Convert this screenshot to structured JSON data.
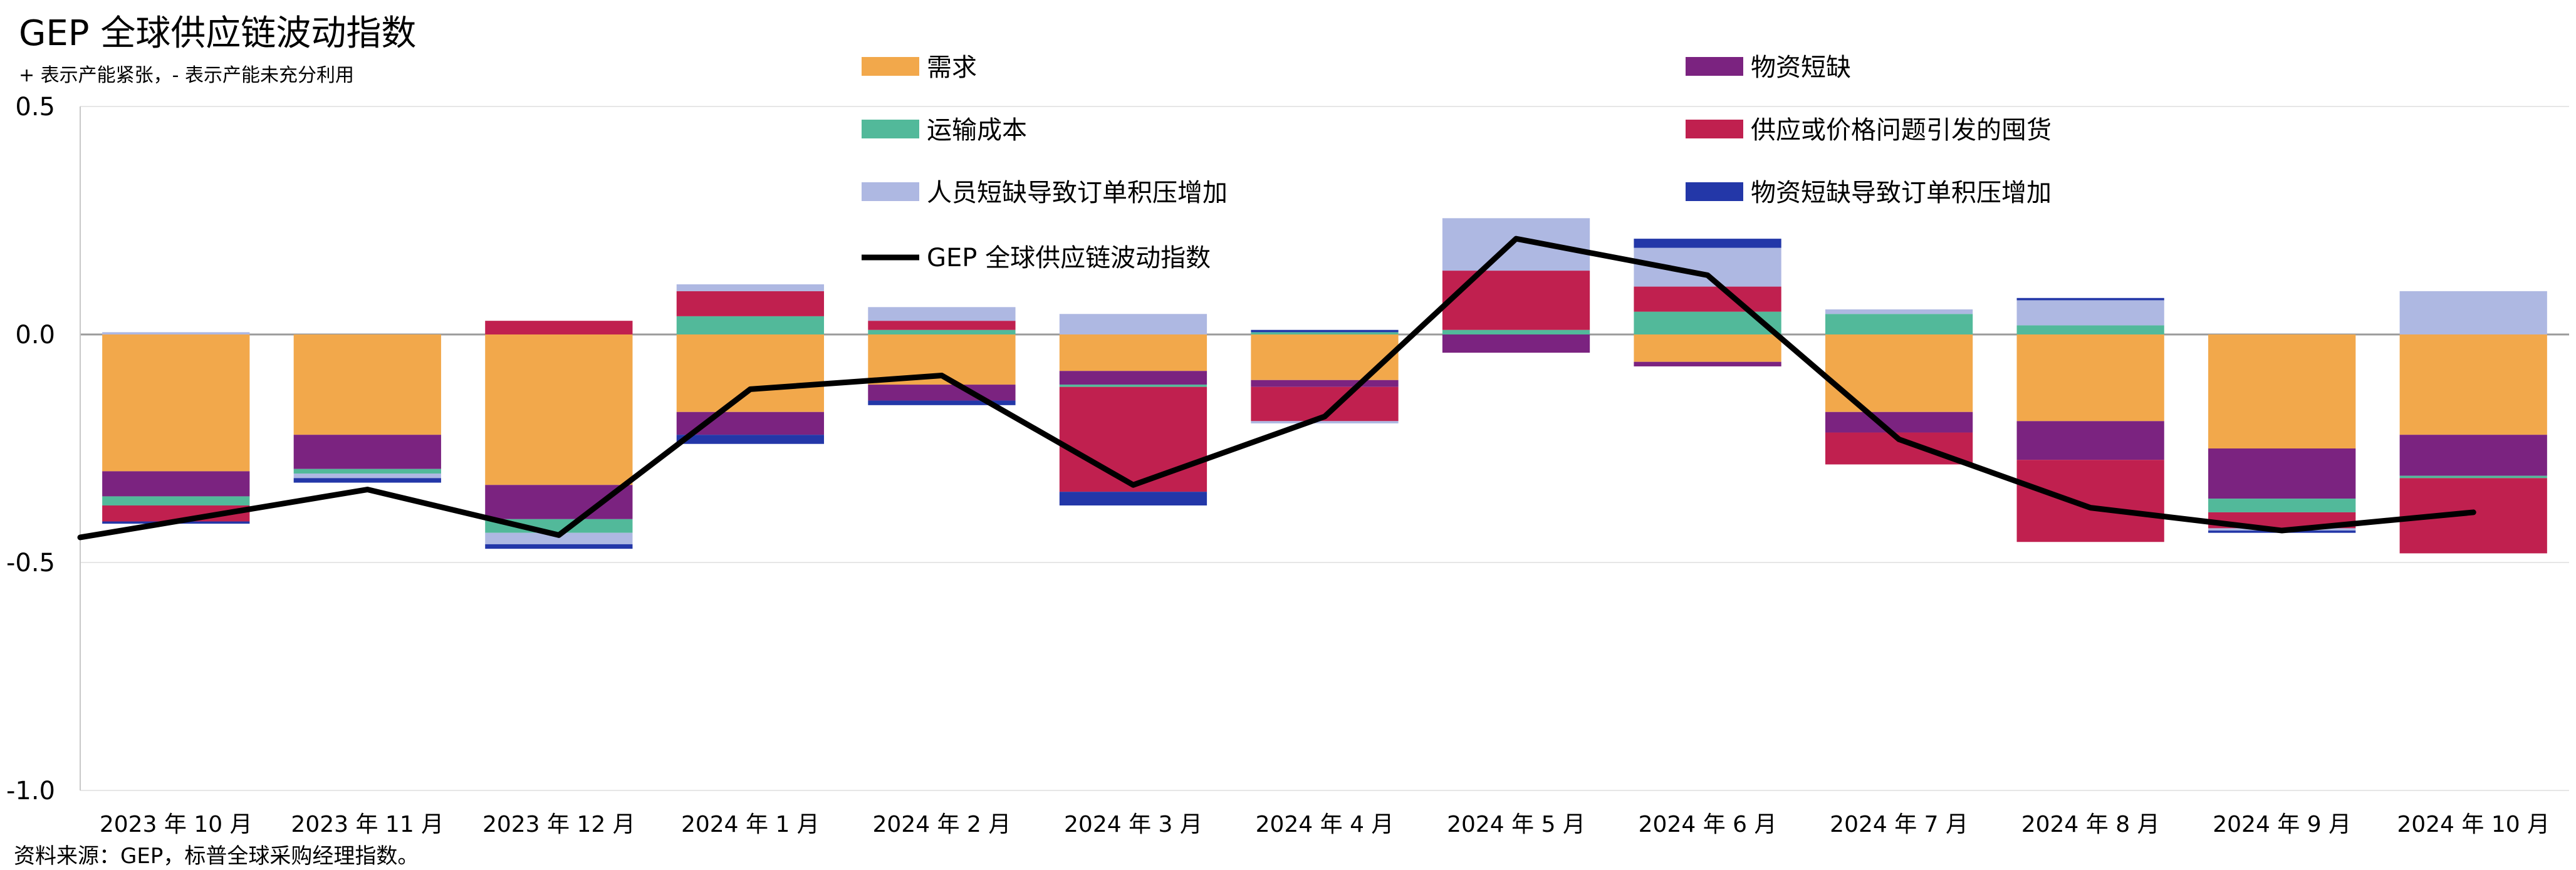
{
  "chart_data": {
    "type": "bar",
    "title": "GEP 全球供应链波动指数",
    "subtitle": "+ 表示产能紧张，- 表示产能未充分利用",
    "source": "资料来源：GEP，标普全球采购经理指数。",
    "categories": [
      "2023 年 10 月",
      "2023 年 11 月",
      "2023 年 12 月",
      "2024 年 1 月",
      "2024 年 2 月",
      "2024 年 3 月",
      "2024 年 4 月",
      "2024 年 5 月",
      "2024 年 6 月",
      "2024 年 7 月",
      "2024 年 8 月",
      "2024 年 9 月",
      "2024 年 10 月"
    ],
    "ylim": [
      -1.0,
      0.5
    ],
    "yticks": [
      0.5,
      0.0,
      -0.5,
      -1.0
    ],
    "ytick_labels": [
      "0.5",
      "0.0",
      "-0.5",
      "-1.0"
    ],
    "grid": true,
    "legend_position": "top",
    "series": [
      {
        "name": "需求",
        "color": "#F2A84B",
        "values": [
          -0.3,
          -0.22,
          -0.33,
          -0.17,
          -0.11,
          -0.08,
          -0.1,
          0.0,
          -0.06,
          -0.17,
          -0.19,
          -0.25,
          -0.22
        ]
      },
      {
        "name": "物资短缺",
        "color": "#7B2380",
        "values": [
          -0.055,
          -0.075,
          -0.075,
          -0.05,
          -0.035,
          -0.03,
          -0.015,
          -0.04,
          -0.01,
          -0.045,
          -0.085,
          -0.11,
          -0.09
        ]
      },
      {
        "name": "运输成本",
        "color": "#52B99A",
        "values": [
          -0.02,
          -0.01,
          -0.03,
          0.04,
          0.01,
          -0.005,
          0.005,
          0.01,
          0.05,
          0.045,
          0.02,
          -0.03,
          -0.005
        ]
      },
      {
        "name": "供应或价格问题引发的囤货",
        "color": "#C0204F",
        "values": [
          -0.035,
          0.0,
          0.03,
          0.055,
          0.02,
          -0.23,
          -0.075,
          0.13,
          0.055,
          -0.07,
          -0.18,
          -0.035,
          -0.165
        ]
      },
      {
        "name": "人员短缺导致订单积压增加",
        "color": "#AEB8E2",
        "values": [
          0.005,
          -0.01,
          -0.025,
          0.015,
          0.03,
          0.045,
          -0.005,
          0.115,
          0.085,
          0.01,
          0.055,
          -0.005,
          0.095
        ]
      },
      {
        "name": "物资短缺导致订单积压增加",
        "color": "#2337A8",
        "values": [
          -0.005,
          -0.01,
          -0.01,
          -0.02,
          -0.01,
          -0.03,
          0.005,
          0.0,
          0.02,
          0.0,
          0.005,
          -0.005,
          0.0
        ]
      }
    ],
    "line": {
      "name": "GEP 全球供应链波动指数",
      "color": "#000000",
      "values": [
        -0.41,
        -0.34,
        -0.44,
        -0.12,
        -0.09,
        -0.33,
        -0.18,
        0.21,
        0.13,
        -0.23,
        -0.38,
        -0.43,
        -0.39
      ]
    }
  }
}
